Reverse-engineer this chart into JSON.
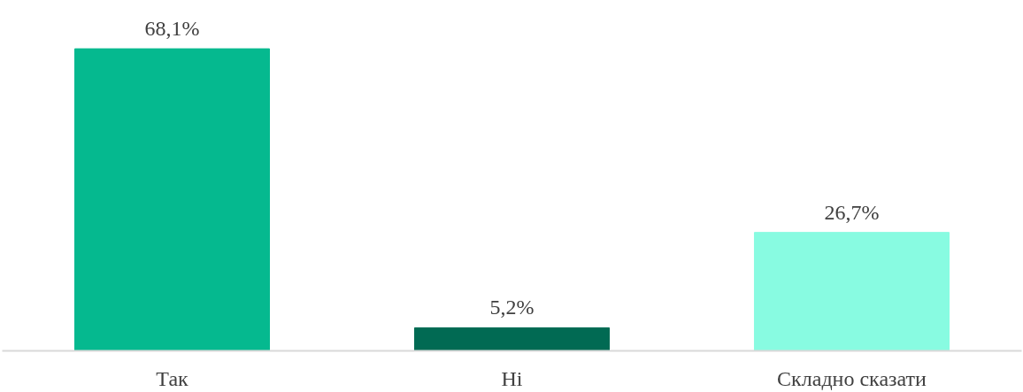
{
  "chart_data": {
    "type": "bar",
    "categories": [
      "Так",
      "Ні",
      "Складно сказати"
    ],
    "values": [
      68.1,
      5.2,
      26.7
    ],
    "colors": [
      "#05b98f",
      "#016a53",
      "#88fbe1"
    ],
    "value_labels": [
      "68,1%",
      "5,2%",
      "26,7%"
    ],
    "grid": false,
    "tick_labels": "x"
  }
}
